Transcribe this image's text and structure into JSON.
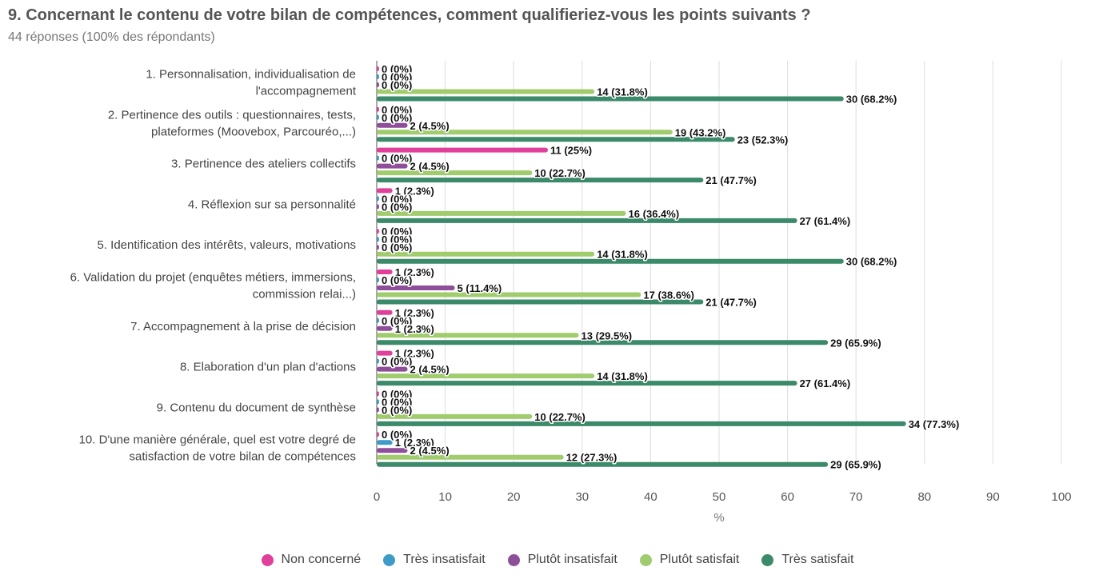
{
  "header": {
    "title": "9. Concernant le contenu de votre bilan de compétences, comment qualifieriez-vous les points suivants ?",
    "subtitle": "44 réponses (100% des répondants)"
  },
  "chart_data": {
    "type": "bar",
    "orientation": "horizontal",
    "xlabel": "%",
    "xlim": [
      0,
      100
    ],
    "xticks": [
      0,
      10,
      20,
      30,
      40,
      50,
      60,
      70,
      80,
      90,
      100
    ],
    "grid": true,
    "legend_position": "bottom",
    "categories": [
      [
        "1. Personnalisation, individualisation de",
        "l'accompagnement"
      ],
      [
        "2. Pertinence des outils : questionnaires, tests,",
        "plateformes (Moovebox, Parcouréo,...)"
      ],
      [
        "3. Pertinence des ateliers collectifs"
      ],
      [
        "4. Réflexion sur sa personnalité"
      ],
      [
        "5. Identification des intérêts, valeurs, motivations"
      ],
      [
        "6. Validation du projet (enquêtes métiers, immersions,",
        "commission relai...)"
      ],
      [
        "7. Accompagnement à la prise de décision"
      ],
      [
        "8. Elaboration d'un plan d'actions"
      ],
      [
        "9. Contenu du document de synthèse"
      ],
      [
        "10. D'une manière générale, quel est votre degré de",
        "satisfaction de votre bilan de compétences"
      ]
    ],
    "series": [
      {
        "name": "Non concerné",
        "color": "#e0409a",
        "values": [
          0,
          0,
          25,
          2.3,
          0,
          2.3,
          2.3,
          2.3,
          0,
          0
        ],
        "labels": [
          "0 (0%)",
          "0 (0%)",
          "11 (25%)",
          "1 (2.3%)",
          "0 (0%)",
          "1 (2.3%)",
          "1 (2.3%)",
          "1 (2.3%)",
          "0 (0%)",
          "0 (0%)"
        ]
      },
      {
        "name": "Très insatisfait",
        "color": "#3e9bc8",
        "values": [
          0,
          0,
          0,
          0,
          0,
          0,
          0,
          0,
          0,
          2.3
        ],
        "labels": [
          "0 (0%)",
          "0 (0%)",
          "0 (0%)",
          "0 (0%)",
          "0 (0%)",
          "0 (0%)",
          "0 (0%)",
          "0 (0%)",
          "0 (0%)",
          "1 (2.3%)"
        ]
      },
      {
        "name": "Plutôt insatisfait",
        "color": "#8e4e99",
        "values": [
          0,
          4.5,
          4.5,
          0,
          0,
          11.4,
          2.3,
          4.5,
          0,
          4.5
        ],
        "labels": [
          "0 (0%)",
          "2 (4.5%)",
          "2 (4.5%)",
          "0 (0%)",
          "0 (0%)",
          "5 (11.4%)",
          "1 (2.3%)",
          "2 (4.5%)",
          "0 (0%)",
          "2 (4.5%)"
        ]
      },
      {
        "name": "Plutôt satisfait",
        "color": "#a1cc6e",
        "values": [
          31.8,
          43.2,
          22.7,
          36.4,
          31.8,
          38.6,
          29.5,
          31.8,
          22.7,
          27.3
        ],
        "labels": [
          "14 (31.8%)",
          "19 (43.2%)",
          "10 (22.7%)",
          "16 (36.4%)",
          "14 (31.8%)",
          "17 (38.6%)",
          "13 (29.5%)",
          "14 (31.8%)",
          "10 (22.7%)",
          "12 (27.3%)"
        ]
      },
      {
        "name": "Très satisfait",
        "color": "#3b8a6a",
        "values": [
          68.2,
          52.3,
          47.7,
          61.4,
          68.2,
          47.7,
          65.9,
          61.4,
          77.3,
          65.9
        ],
        "labels": [
          "30 (68.2%)",
          "23 (52.3%)",
          "21 (47.7%)",
          "27 (61.4%)",
          "30 (68.2%)",
          "21 (47.7%)",
          "29 (65.9%)",
          "27 (61.4%)",
          "34 (77.3%)",
          "29 (65.9%)"
        ]
      }
    ]
  }
}
